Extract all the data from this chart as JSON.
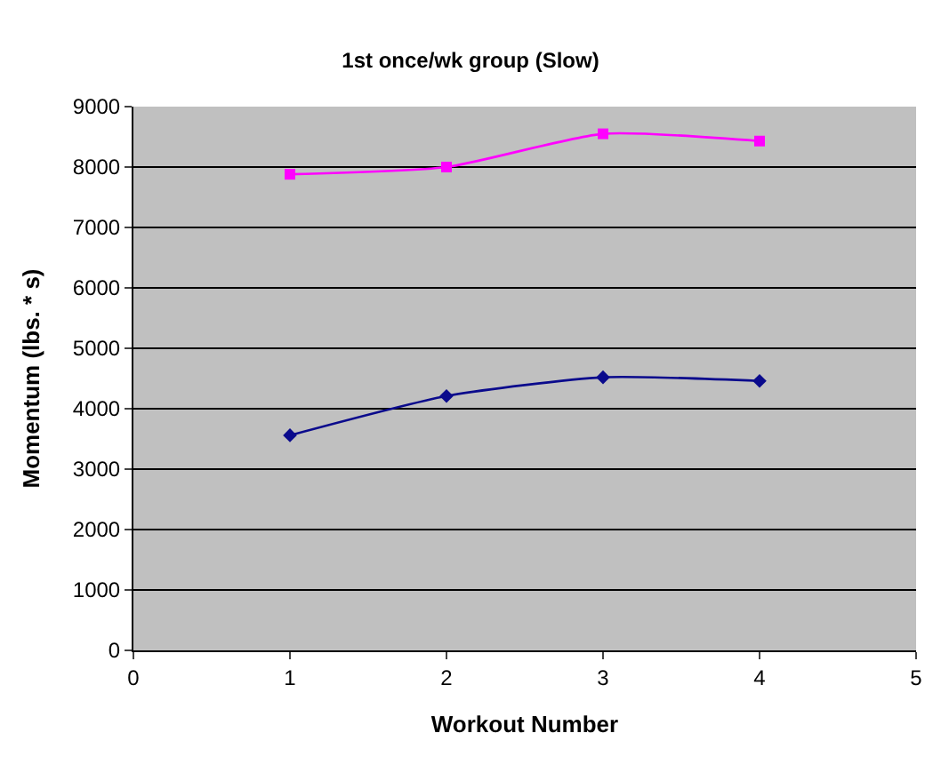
{
  "chart_data": {
    "type": "line",
    "title": "1st once/wk group (Slow)",
    "xlabel": "Workout Number",
    "ylabel": "Momentum (lbs. * s)",
    "x": [
      1,
      2,
      3,
      4
    ],
    "series": [
      {
        "color": "#0a0a8c",
        "values": [
          3560,
          4210,
          4520,
          4460
        ],
        "marker": "diamond"
      },
      {
        "color": "#ff00ff",
        "values": [
          7880,
          8000,
          8550,
          8430
        ],
        "marker": "square"
      }
    ],
    "xlim": [
      0,
      5
    ],
    "xticks": [
      0,
      1,
      2,
      3,
      4,
      5
    ],
    "ylim": [
      0,
      9000
    ],
    "yticks": [
      0,
      1000,
      2000,
      3000,
      4000,
      5000,
      6000,
      7000,
      8000,
      9000
    ],
    "grid": "y",
    "line_style": "solid"
  }
}
